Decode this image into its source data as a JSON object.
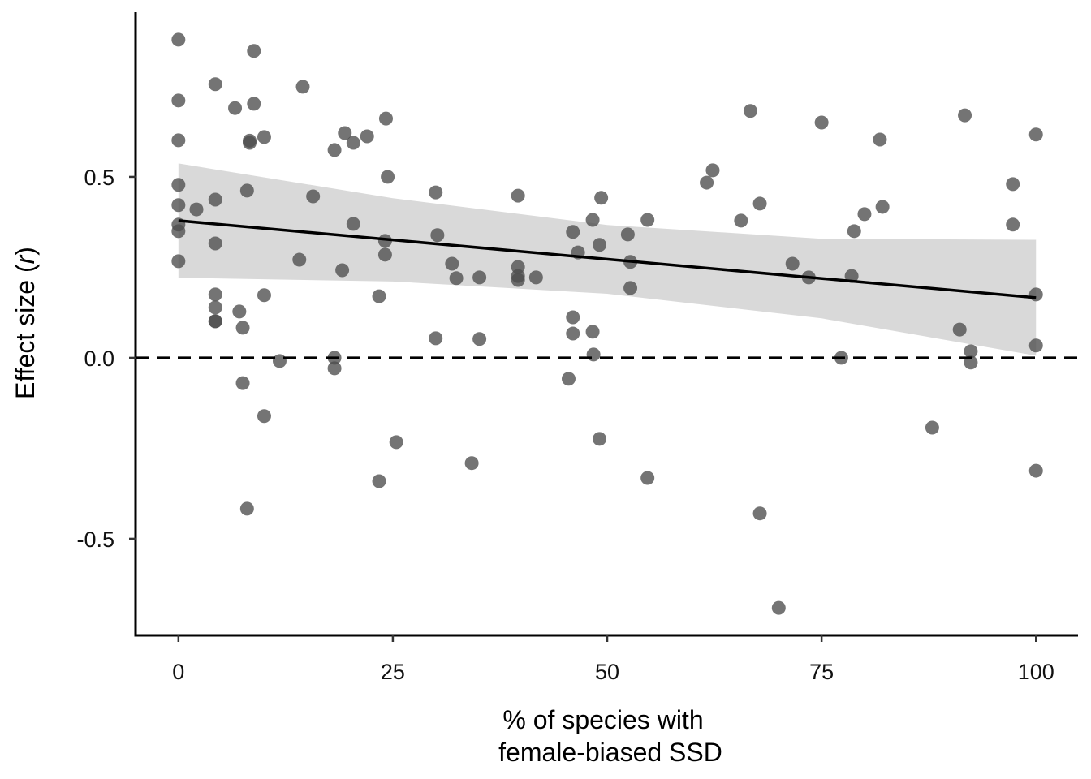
{
  "chart_data": {
    "type": "scatter",
    "title": "",
    "xlabel_lines": [
      "% of species with",
      "female-biased SSD"
    ],
    "ylabel": {
      "prefix": "Effect size (",
      "italic": "r",
      "suffix": ")"
    },
    "xlim": [
      -5,
      104.9
    ],
    "ylim": [
      -0.767,
      0.955
    ],
    "x_ticks": [
      0,
      25,
      50,
      75,
      100
    ],
    "x_tick_labels": [
      "0",
      "25",
      "50",
      "75",
      "100"
    ],
    "y_ticks": [
      0.5,
      0.0,
      -0.5
    ],
    "y_tick_labels": [
      "0.5",
      "0.0",
      "-0.5"
    ],
    "grid": false,
    "reference_line": {
      "y": 0,
      "style": "dashed"
    },
    "regression": {
      "x": [
        0,
        100
      ],
      "y": [
        0.379,
        0.166
      ]
    },
    "confidence_band": {
      "x": [
        0,
        25,
        50,
        75,
        100
      ],
      "lower": [
        0.221,
        0.211,
        0.177,
        0.109,
        0.006
      ],
      "upper": [
        0.537,
        0.441,
        0.367,
        0.329,
        0.326
      ]
    },
    "points": [
      [
        0,
        0.879
      ],
      [
        0,
        0.711
      ],
      [
        0,
        0.601
      ],
      [
        0,
        0.478
      ],
      [
        0,
        0.422
      ],
      [
        0,
        0.368
      ],
      [
        0,
        0.35
      ],
      [
        0,
        0.267
      ],
      [
        2.1,
        0.41
      ],
      [
        4.3,
        0.756
      ],
      [
        4.3,
        0.437
      ],
      [
        4.3,
        0.316
      ],
      [
        4.3,
        0.175
      ],
      [
        4.3,
        0.139
      ],
      [
        4.3,
        0.101
      ],
      [
        4.3,
        0.101
      ],
      [
        6.6,
        0.69
      ],
      [
        7.1,
        0.128
      ],
      [
        7.5,
        0.083
      ],
      [
        7.5,
        -0.07
      ],
      [
        8.0,
        0.462
      ],
      [
        8.0,
        -0.417
      ],
      [
        8.3,
        0.594
      ],
      [
        8.3,
        0.6
      ],
      [
        8.8,
        0.848
      ],
      [
        8.8,
        0.702
      ],
      [
        10.0,
        0.61
      ],
      [
        10.0,
        0.173
      ],
      [
        10.0,
        -0.161
      ],
      [
        11.8,
        -0.009
      ],
      [
        14.1,
        0.271
      ],
      [
        14.5,
        0.749
      ],
      [
        15.7,
        0.446
      ],
      [
        18.2,
        0.574
      ],
      [
        18.2,
        0.0
      ],
      [
        18.2,
        -0.029
      ],
      [
        19.1,
        0.242
      ],
      [
        19.4,
        0.621
      ],
      [
        20.4,
        0.37
      ],
      [
        20.4,
        0.594
      ],
      [
        22.0,
        0.612
      ],
      [
        23.4,
        0.17
      ],
      [
        23.4,
        -0.341
      ],
      [
        24.2,
        0.661
      ],
      [
        24.1,
        0.323
      ],
      [
        24.1,
        0.285
      ],
      [
        24.4,
        0.5
      ],
      [
        25.4,
        -0.233
      ],
      [
        30.0,
        0.457
      ],
      [
        30.2,
        0.339
      ],
      [
        30.0,
        0.054
      ],
      [
        31.9,
        0.26
      ],
      [
        32.4,
        0.22
      ],
      [
        34.2,
        -0.291
      ],
      [
        35.1,
        0.222
      ],
      [
        35.1,
        0.052
      ],
      [
        39.6,
        0.448
      ],
      [
        39.6,
        0.251
      ],
      [
        39.6,
        0.226
      ],
      [
        39.6,
        0.215
      ],
      [
        41.7,
        0.222
      ],
      [
        45.5,
        -0.058
      ],
      [
        46.0,
        0.348
      ],
      [
        46.0,
        0.112
      ],
      [
        46.0,
        0.067
      ],
      [
        46.6,
        0.291
      ],
      [
        48.3,
        0.381
      ],
      [
        48.3,
        0.072
      ],
      [
        48.4,
        0.009
      ],
      [
        49.1,
        0.312
      ],
      [
        49.1,
        -0.224
      ],
      [
        49.3,
        0.442
      ],
      [
        52.4,
        0.341
      ],
      [
        52.7,
        0.265
      ],
      [
        52.7,
        0.193
      ],
      [
        54.7,
        0.381
      ],
      [
        54.7,
        -0.332
      ],
      [
        61.6,
        0.484
      ],
      [
        62.3,
        0.518
      ],
      [
        65.6,
        0.379
      ],
      [
        66.7,
        0.682
      ],
      [
        67.8,
        0.426
      ],
      [
        67.8,
        -0.43
      ],
      [
        70.0,
        -0.691
      ],
      [
        71.6,
        0.26
      ],
      [
        73.5,
        0.222
      ],
      [
        75.0,
        0.65
      ],
      [
        77.3,
        0.0
      ],
      [
        78.5,
        0.226
      ],
      [
        78.8,
        0.35
      ],
      [
        80.0,
        0.397
      ],
      [
        81.8,
        0.603
      ],
      [
        82.1,
        0.417
      ],
      [
        87.9,
        -0.193
      ],
      [
        91.1,
        0.078
      ],
      [
        91.7,
        0.67
      ],
      [
        92.4,
        0.018
      ],
      [
        92.4,
        -0.013
      ],
      [
        97.3,
        0.48
      ],
      [
        97.3,
        0.368
      ],
      [
        100,
        0.617
      ],
      [
        100,
        0.175
      ],
      [
        100,
        0.034
      ],
      [
        100,
        -0.312
      ]
    ],
    "colors": {
      "point": "#4d4d4d",
      "band": "#d9d9d9",
      "line": "#000000"
    }
  }
}
